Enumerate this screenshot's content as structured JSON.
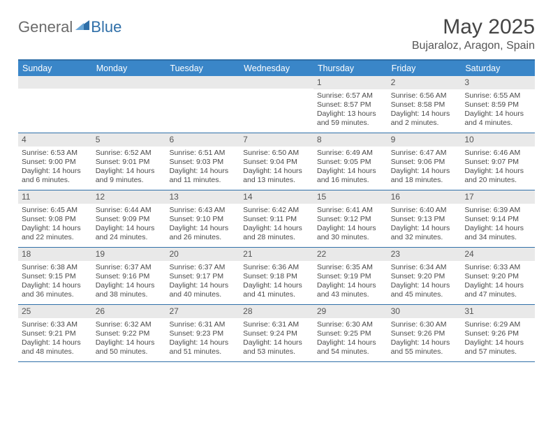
{
  "logo": {
    "general": "General",
    "blue": "Blue"
  },
  "title": "May 2025",
  "location": "Bujaraloz, Aragon, Spain",
  "weekdays": [
    "Sunday",
    "Monday",
    "Tuesday",
    "Wednesday",
    "Thursday",
    "Friday",
    "Saturday"
  ],
  "colors": {
    "header_bg": "#3a86c8",
    "border": "#2f6fa8",
    "daynum_bg": "#e9e9e9"
  },
  "weeks": [
    [
      null,
      null,
      null,
      null,
      {
        "n": "1",
        "sr": "6:57 AM",
        "ss": "8:57 PM",
        "dl": "13 hours and 59 minutes."
      },
      {
        "n": "2",
        "sr": "6:56 AM",
        "ss": "8:58 PM",
        "dl": "14 hours and 2 minutes."
      },
      {
        "n": "3",
        "sr": "6:55 AM",
        "ss": "8:59 PM",
        "dl": "14 hours and 4 minutes."
      }
    ],
    [
      {
        "n": "4",
        "sr": "6:53 AM",
        "ss": "9:00 PM",
        "dl": "14 hours and 6 minutes."
      },
      {
        "n": "5",
        "sr": "6:52 AM",
        "ss": "9:01 PM",
        "dl": "14 hours and 9 minutes."
      },
      {
        "n": "6",
        "sr": "6:51 AM",
        "ss": "9:03 PM",
        "dl": "14 hours and 11 minutes."
      },
      {
        "n": "7",
        "sr": "6:50 AM",
        "ss": "9:04 PM",
        "dl": "14 hours and 13 minutes."
      },
      {
        "n": "8",
        "sr": "6:49 AM",
        "ss": "9:05 PM",
        "dl": "14 hours and 16 minutes."
      },
      {
        "n": "9",
        "sr": "6:47 AM",
        "ss": "9:06 PM",
        "dl": "14 hours and 18 minutes."
      },
      {
        "n": "10",
        "sr": "6:46 AM",
        "ss": "9:07 PM",
        "dl": "14 hours and 20 minutes."
      }
    ],
    [
      {
        "n": "11",
        "sr": "6:45 AM",
        "ss": "9:08 PM",
        "dl": "14 hours and 22 minutes."
      },
      {
        "n": "12",
        "sr": "6:44 AM",
        "ss": "9:09 PM",
        "dl": "14 hours and 24 minutes."
      },
      {
        "n": "13",
        "sr": "6:43 AM",
        "ss": "9:10 PM",
        "dl": "14 hours and 26 minutes."
      },
      {
        "n": "14",
        "sr": "6:42 AM",
        "ss": "9:11 PM",
        "dl": "14 hours and 28 minutes."
      },
      {
        "n": "15",
        "sr": "6:41 AM",
        "ss": "9:12 PM",
        "dl": "14 hours and 30 minutes."
      },
      {
        "n": "16",
        "sr": "6:40 AM",
        "ss": "9:13 PM",
        "dl": "14 hours and 32 minutes."
      },
      {
        "n": "17",
        "sr": "6:39 AM",
        "ss": "9:14 PM",
        "dl": "14 hours and 34 minutes."
      }
    ],
    [
      {
        "n": "18",
        "sr": "6:38 AM",
        "ss": "9:15 PM",
        "dl": "14 hours and 36 minutes."
      },
      {
        "n": "19",
        "sr": "6:37 AM",
        "ss": "9:16 PM",
        "dl": "14 hours and 38 minutes."
      },
      {
        "n": "20",
        "sr": "6:37 AM",
        "ss": "9:17 PM",
        "dl": "14 hours and 40 minutes."
      },
      {
        "n": "21",
        "sr": "6:36 AM",
        "ss": "9:18 PM",
        "dl": "14 hours and 41 minutes."
      },
      {
        "n": "22",
        "sr": "6:35 AM",
        "ss": "9:19 PM",
        "dl": "14 hours and 43 minutes."
      },
      {
        "n": "23",
        "sr": "6:34 AM",
        "ss": "9:20 PM",
        "dl": "14 hours and 45 minutes."
      },
      {
        "n": "24",
        "sr": "6:33 AM",
        "ss": "9:20 PM",
        "dl": "14 hours and 47 minutes."
      }
    ],
    [
      {
        "n": "25",
        "sr": "6:33 AM",
        "ss": "9:21 PM",
        "dl": "14 hours and 48 minutes."
      },
      {
        "n": "26",
        "sr": "6:32 AM",
        "ss": "9:22 PM",
        "dl": "14 hours and 50 minutes."
      },
      {
        "n": "27",
        "sr": "6:31 AM",
        "ss": "9:23 PM",
        "dl": "14 hours and 51 minutes."
      },
      {
        "n": "28",
        "sr": "6:31 AM",
        "ss": "9:24 PM",
        "dl": "14 hours and 53 minutes."
      },
      {
        "n": "29",
        "sr": "6:30 AM",
        "ss": "9:25 PM",
        "dl": "14 hours and 54 minutes."
      },
      {
        "n": "30",
        "sr": "6:30 AM",
        "ss": "9:26 PM",
        "dl": "14 hours and 55 minutes."
      },
      {
        "n": "31",
        "sr": "6:29 AM",
        "ss": "9:26 PM",
        "dl": "14 hours and 57 minutes."
      }
    ]
  ],
  "labels": {
    "sunrise": "Sunrise: ",
    "sunset": "Sunset: ",
    "daylight": "Daylight: "
  }
}
